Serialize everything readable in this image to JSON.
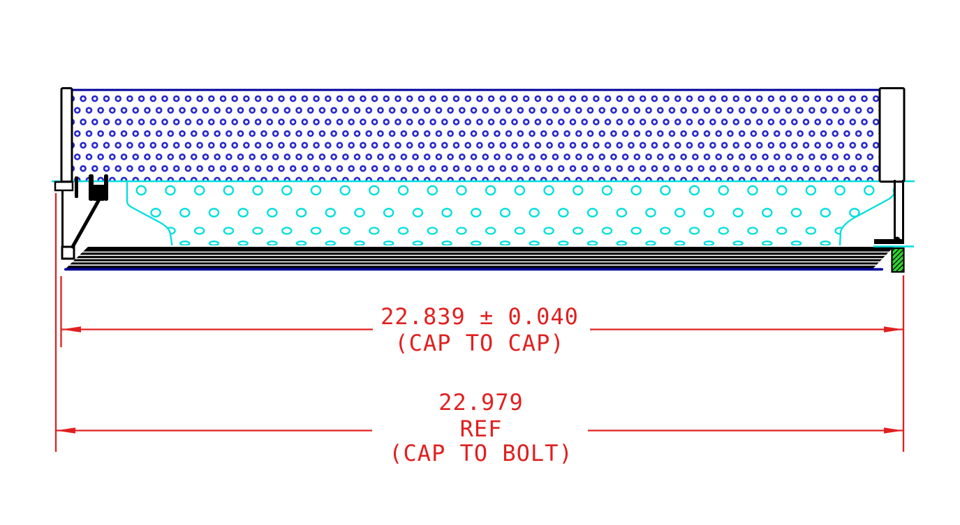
{
  "drawing": {
    "title": "filter-element-side-view",
    "dimensions": {
      "cap_to_cap": {
        "value": "22.839 ± 0.040",
        "label": "(CAP TO CAP)"
      },
      "cap_to_bolt": {
        "value": "22.979",
        "qualifier": "REF",
        "label": "(CAP TO BOLT)"
      }
    },
    "colors": {
      "mesh_blue": "#2222cc",
      "edge_navy": "#000099",
      "core_cyan": "#00dede",
      "seal_green": "#2fd32f",
      "dimension_red": "#e02020",
      "outline_black": "#000000"
    }
  }
}
